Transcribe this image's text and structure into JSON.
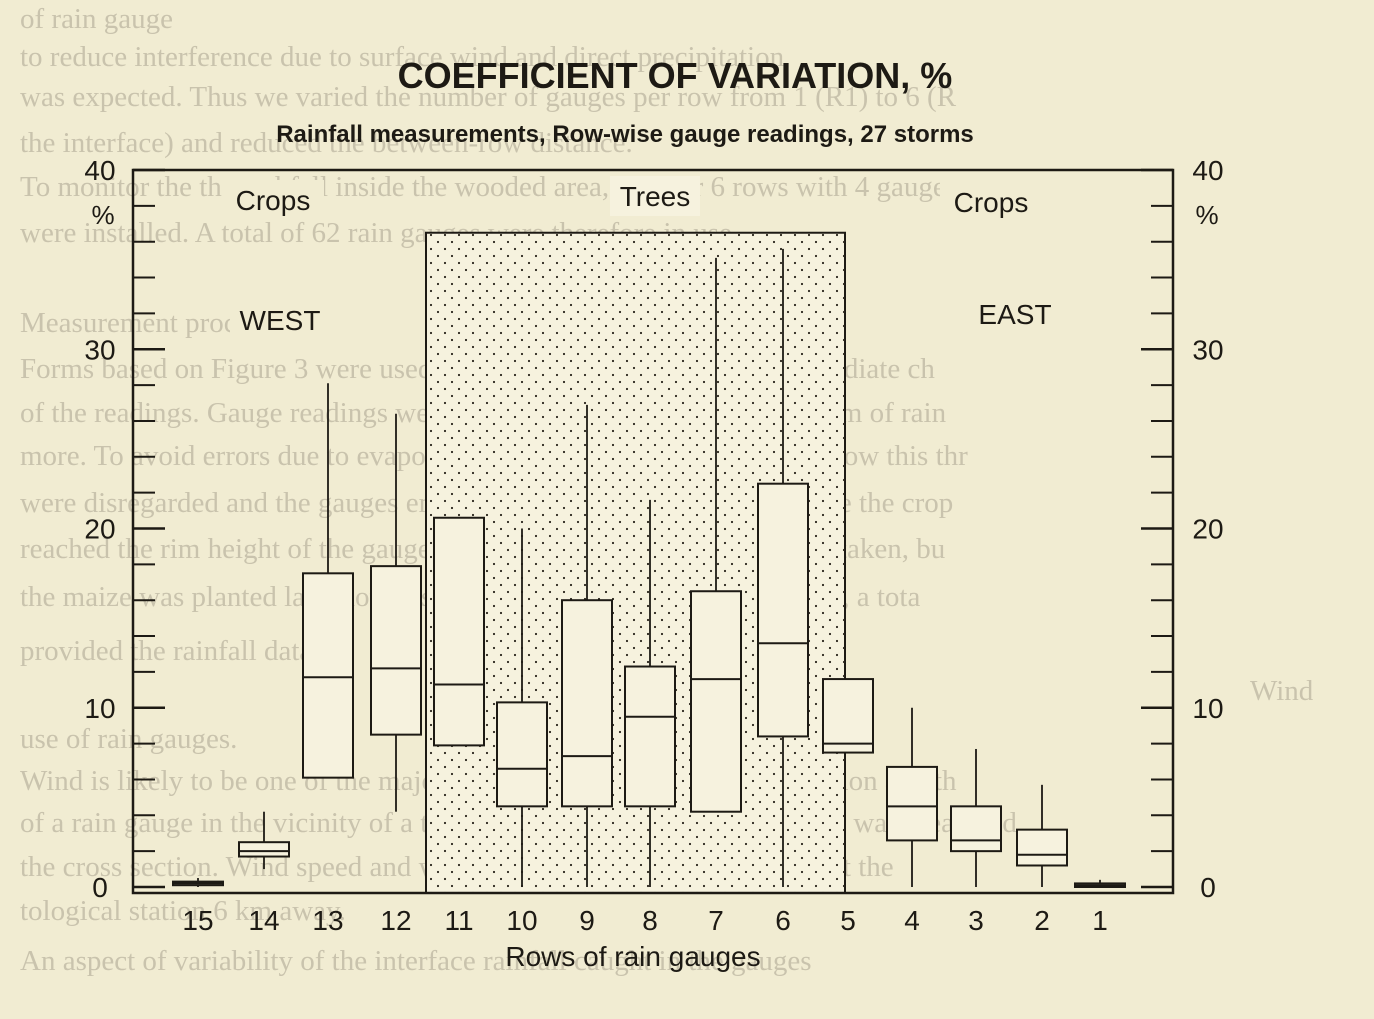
{
  "chart_data": {
    "type": "box",
    "title": "COEFFICIENT OF VARIATION, %",
    "subtitle": "Rainfall measurements, Row-wise gauge readings, 27 storms",
    "xlabel": "Rows of rain gauges",
    "y_unit_left": "%",
    "y_unit_right": "%",
    "ylim": [
      0,
      40
    ],
    "yticks": [
      0,
      10,
      20,
      30,
      40
    ],
    "grid": false,
    "region_labels": {
      "west_crops": "Crops",
      "trees": "Trees",
      "east_crops": "Crops",
      "west": "WEST",
      "east": "EAST"
    },
    "trees_region": {
      "from_row": "11",
      "to_row": "6",
      "top": 36.5
    },
    "categories": [
      "15",
      "14",
      "13",
      "12",
      "11",
      "10",
      "9",
      "8",
      "7",
      "6",
      "5",
      "4",
      "3",
      "2",
      "1"
    ],
    "boxes": [
      {
        "row": "15",
        "min": 0.0,
        "q1": 0.1,
        "median": 0.2,
        "q3": 0.3,
        "max": 0.5
      },
      {
        "row": "14",
        "min": 1.0,
        "q1": 1.7,
        "median": 2.0,
        "q3": 2.5,
        "max": 4.2
      },
      {
        "row": "13",
        "min": 6.1,
        "q1": 6.1,
        "median": 11.7,
        "q3": 17.5,
        "max": 28.1
      },
      {
        "row": "12",
        "min": 4.2,
        "q1": 8.5,
        "median": 12.2,
        "q3": 17.9,
        "max": 26.4
      },
      {
        "row": "11",
        "min": 7.9,
        "q1": 7.9,
        "median": 11.3,
        "q3": 20.6,
        "max": 20.6
      },
      {
        "row": "10",
        "min": 0.0,
        "q1": 4.5,
        "median": 6.6,
        "q3": 10.3,
        "max": 20.0
      },
      {
        "row": "9",
        "min": 0.0,
        "q1": 4.5,
        "median": 7.3,
        "q3": 16.0,
        "max": 26.9
      },
      {
        "row": "8",
        "min": 0.0,
        "q1": 4.5,
        "median": 9.5,
        "q3": 12.3,
        "max": 21.6
      },
      {
        "row": "7",
        "min": 4.2,
        "q1": 4.2,
        "median": 11.6,
        "q3": 16.5,
        "max": 35.1
      },
      {
        "row": "6",
        "min": 0.0,
        "q1": 8.4,
        "median": 13.6,
        "q3": 22.5,
        "max": 35.6
      },
      {
        "row": "5",
        "min": 7.5,
        "q1": 7.5,
        "median": 8.0,
        "q3": 11.6,
        "max": 11.6
      },
      {
        "row": "4",
        "min": 0.0,
        "q1": 2.6,
        "median": 4.5,
        "q3": 6.7,
        "max": 10.0
      },
      {
        "row": "3",
        "min": 0.0,
        "q1": 2.0,
        "median": 2.6,
        "q3": 4.5,
        "max": 7.7
      },
      {
        "row": "2",
        "min": 0.0,
        "q1": 1.2,
        "median": 1.8,
        "q3": 3.2,
        "max": 5.7
      },
      {
        "row": "1",
        "min": 0.0,
        "q1": 0.0,
        "median": 0.1,
        "q3": 0.2,
        "max": 0.4
      }
    ]
  },
  "bleed_through": [
    "of rain gauge",
    "to reduce interference due to surface wind and direct precipitation",
    "was expected. Thus we varied the number of gauges per row from 1 (R1) to 6 (R",
    "the interface) and reduced the between-row distance.",
    "To monitor the throughfall inside the wooded area, another 6 rows with 4 gauge",
    "were installed. A total of 62 rain gauges were therefore in use.",
    "Measurement procedures",
    "Forms based on Figure 3 were used for immediate recording and immediate ch",
    "of the readings. Gauge readings were made for every storm with 5.5 mm of rain",
    "more. To avoid errors due to evaporation and in some cases, storms below this thr",
    "were disregarded and the gauges emptied between measurements. Once the crop",
    "reached the rim height of the gauges, no further rainfall readings were taken, bu",
    "the maize was planted late, not all storms were included in the analysis, a tota",
    "provided the rainfall data.",
    "Wind",
    "use of rain gauges.",
    "Wind is likely to be one of the major factors affecting the rain distribution and th",
    "of a rain gauge in the vicinity of a tree belt or other barrier. Wind speed was measured",
    "the cross section. Wind speed and wind direction were also measured at the",
    "tological station 6 km away.",
    "An aspect of variability of the interface rainfall caught in the gauges"
  ]
}
